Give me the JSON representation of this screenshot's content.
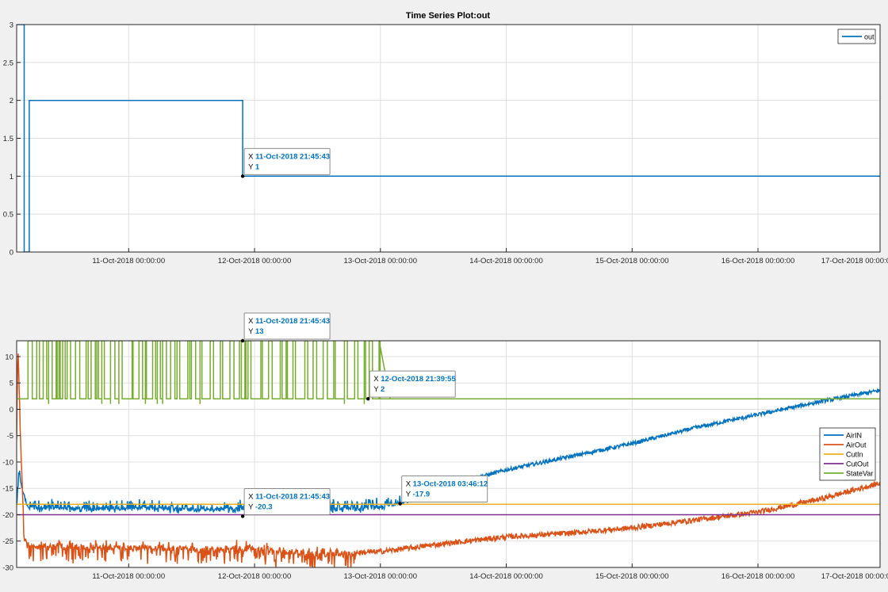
{
  "figure": {
    "title": "Time Series Plot:out",
    "background": "#f0f0f0"
  },
  "colors": {
    "blue": "#0072bd",
    "orange": "#d95319",
    "yellow": "#edb120",
    "purple": "#7e2f8e",
    "green": "#77ac30",
    "grid": "#dfdfdf",
    "axis": "#262626",
    "datatip_text": "#0072bd"
  },
  "x_tick_labels": [
    "11-Oct-2018 00:00:00",
    "12-Oct-2018 00:00:00",
    "13-Oct-2018 00:00:00",
    "14-Oct-2018 00:00:00",
    "15-Oct-2018 00:00:00",
    "16-Oct-2018 00:00:00",
    "17-Oct-2018 00:00:00"
  ],
  "chart_data": [
    {
      "type": "line",
      "title": "Time Series Plot:out",
      "x_unit": "days since 10-Oct-2018 00:00:00",
      "xlim": [
        0.11,
        6.97
      ],
      "ylim": [
        0,
        3
      ],
      "y_ticks": [
        0,
        0.5,
        1,
        1.5,
        2,
        2.5,
        3
      ],
      "y_tick_labels": [
        "0",
        "0.5",
        "1",
        "1.5",
        "2",
        "2.5",
        "3"
      ],
      "grid": true,
      "legend": {
        "position": "top-right",
        "entries": [
          "out"
        ]
      },
      "series": [
        {
          "name": "out",
          "color": "#0072bd",
          "x": [
            0.11,
            0.17,
            0.17,
            0.21,
            0.21,
            1.906,
            1.906,
            6.97
          ],
          "y": [
            3,
            3,
            0,
            0,
            2,
            2,
            1,
            1
          ]
        }
      ],
      "datatips": [
        {
          "x_label": "X",
          "x_value": "11-Oct-2018 21:45:43",
          "y_label": "Y",
          "y_value": "1",
          "x": 1.906,
          "y": 1
        }
      ]
    },
    {
      "type": "line",
      "title": "",
      "x_unit": "days since 10-Oct-2018 00:00:00",
      "xlim": [
        0.11,
        6.97
      ],
      "ylim": [
        -30,
        13
      ],
      "y_ticks": [
        -30,
        -25,
        -20,
        -15,
        -10,
        -5,
        0,
        5,
        10
      ],
      "y_tick_labels": [
        "-30",
        "-25",
        "-20",
        "-15",
        "-10",
        "-5",
        "0",
        "5",
        "10"
      ],
      "grid": true,
      "legend": {
        "position": "right",
        "entries": [
          "AirIN",
          "AirOut",
          "CutIn",
          "CutOut",
          "StateVar"
        ]
      },
      "series": [
        {
          "name": "AirIN",
          "color": "#0072bd",
          "x": [
            0.11,
            0.13,
            0.16,
            0.2,
            0.3,
            1.0,
            2.0,
            2.9,
            3.16,
            3.3,
            3.6,
            4.0,
            4.5,
            5.0,
            5.5,
            6.0,
            6.5,
            6.97
          ],
          "y": [
            -19,
            -12,
            -16,
            -18.5,
            -18.8,
            -18.8,
            -19,
            -18.8,
            -17.9,
            -16.5,
            -14,
            -11.5,
            -9,
            -6.5,
            -3.5,
            -1,
            1.5,
            3.6
          ],
          "noise": 0.35,
          "spikes_until": 3.16,
          "spike_amp": 2.2
        },
        {
          "name": "AirOut",
          "color": "#d95319",
          "x": [
            0.11,
            0.12,
            0.14,
            0.17,
            0.22,
            1.0,
            2.0,
            2.5,
            3.0,
            3.5,
            4.0,
            4.5,
            5.0,
            5.5,
            6.0,
            6.5,
            6.97
          ],
          "y": [
            -5,
            12,
            -5,
            -24,
            -26,
            -26.3,
            -26.5,
            -27.5,
            -27,
            -25.5,
            -24.2,
            -23.5,
            -22.5,
            -21,
            -19.5,
            -17,
            -14
          ],
          "noise": 0.5,
          "spikes_until": 2.8,
          "spike_amp": 4
        },
        {
          "name": "CutIn",
          "color": "#edb120",
          "x": [
            0.11,
            6.97
          ],
          "y": [
            -18,
            -18
          ]
        },
        {
          "name": "CutOut",
          "color": "#7e2f8e",
          "x": [
            0.11,
            6.97
          ],
          "y": [
            -20,
            -20
          ]
        },
        {
          "name": "StateVar",
          "color": "#77ac30",
          "x": [
            0.11,
            2.99,
            6.97
          ],
          "y": [
            2,
            2,
            2
          ],
          "toggle_from": 0.2,
          "toggle_until": 2.99,
          "high": 13,
          "low": 2
        }
      ],
      "datatips": [
        {
          "x_label": "X",
          "x_value": "11-Oct-2018 21:45:43",
          "y_label": "Y",
          "y_value": "13",
          "x": 1.906,
          "y": 13
        },
        {
          "x_label": "X",
          "x_value": "12-Oct-2018 21:39:55",
          "y_label": "Y",
          "y_value": "2",
          "x": 2.902,
          "y": 2
        },
        {
          "x_label": "X",
          "x_value": "13-Oct-2018 03:46:12",
          "y_label": "Y",
          "y_value": "-17.9",
          "x": 3.157,
          "y": -17.9
        },
        {
          "x_label": "X",
          "x_value": "11-Oct-2018 21:45:43",
          "y_label": "Y",
          "y_value": "-20.3",
          "x": 1.906,
          "y": -20.3
        }
      ]
    }
  ]
}
